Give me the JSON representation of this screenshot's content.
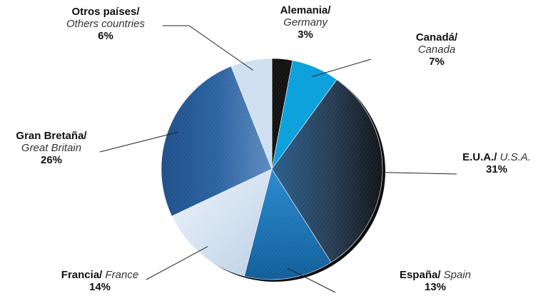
{
  "chart_data": {
    "type": "pie",
    "title": "",
    "slices": [
      {
        "label_es": "Alemania/",
        "label_en": "Germany",
        "value": 3,
        "percent_label": "3%",
        "color": "#111111"
      },
      {
        "label_es": "Canadá/",
        "label_en": "Canada",
        "value": 7,
        "percent_label": "7%",
        "color": "#0aa0dc"
      },
      {
        "label_es": "E.U.A./",
        "label_en": "U.S.A.",
        "value": 31,
        "percent_label": "31%",
        "color": "#2c4a66"
      },
      {
        "label_es": "España/",
        "label_en": "Spain",
        "value": 13,
        "percent_label": "13%",
        "color": "#1a78b8"
      },
      {
        "label_es": "Francia/",
        "label_en": "France",
        "value": 14,
        "percent_label": "14%",
        "color": "#d2e2f0"
      },
      {
        "label_es": "Gran Bretaña/",
        "label_en": "Great Britain",
        "value": 26,
        "percent_label": "26%",
        "color": "#2d6aa8"
      },
      {
        "label_es": "Otros países/",
        "label_en": "Others countries",
        "value": 6,
        "percent_label": "6%",
        "color": "#cfdff0"
      }
    ],
    "start": "top-clockwise",
    "legend": "none"
  }
}
